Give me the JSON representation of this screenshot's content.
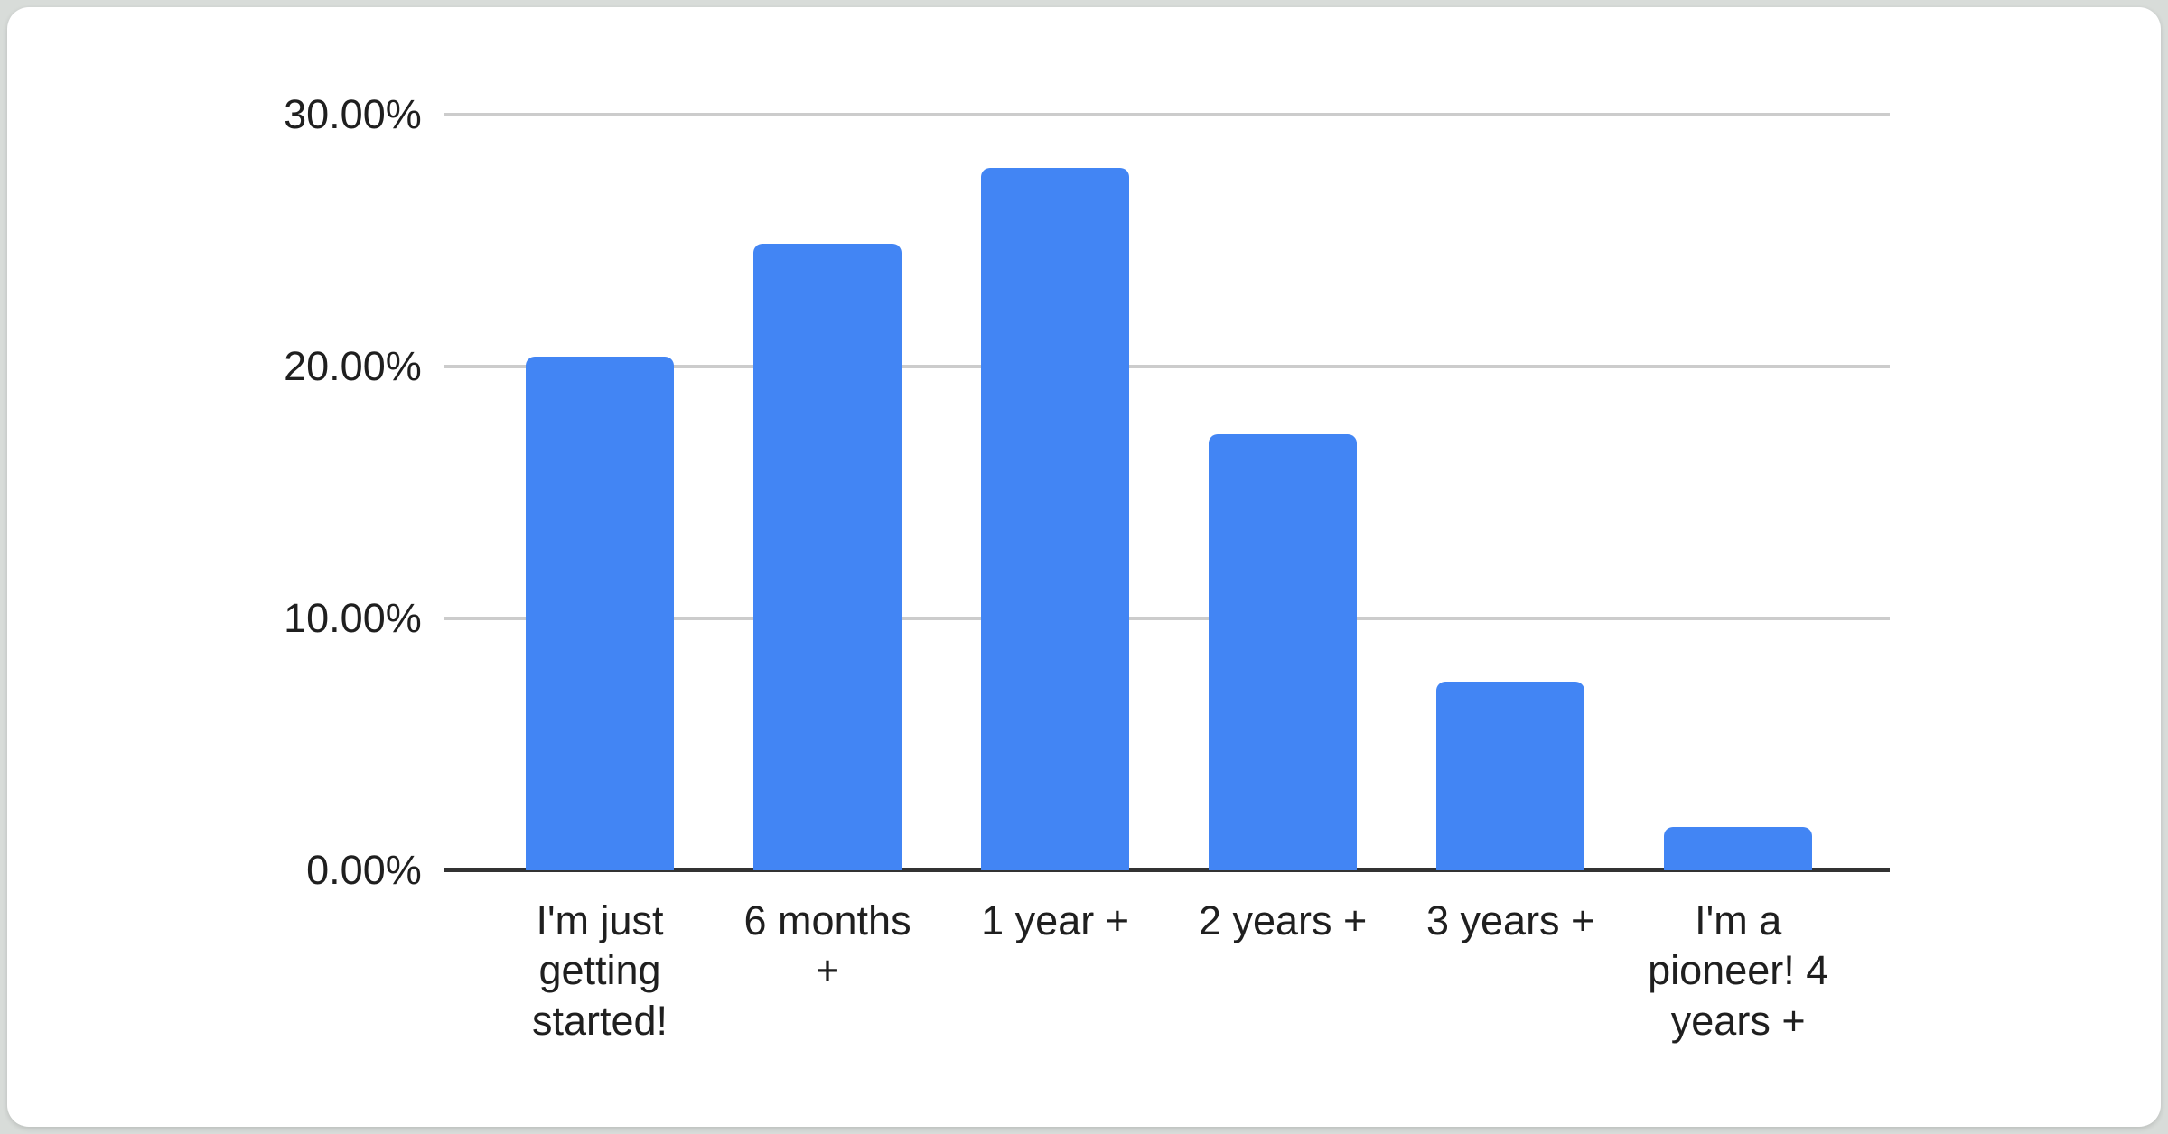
{
  "frame": {
    "background_color": "#d8dcd9",
    "card_background_color": "#ffffff"
  },
  "chart_data": {
    "type": "bar",
    "title": "",
    "categories": [
      "I'm just getting started!",
      "6 months +",
      "1 year +",
      "2 years +",
      "3 years +",
      "I'm a pioneer! 4 years +"
    ],
    "values": [
      20.4,
      24.9,
      27.9,
      17.3,
      7.5,
      1.7
    ],
    "value_unit": "%",
    "y_ticks": [
      "30.00%",
      "20.00%",
      "10.00%",
      "0.00%"
    ],
    "ylim": [
      0,
      30
    ],
    "xlabel": "",
    "ylabel": "",
    "grid": true,
    "legend_position": "none",
    "bar_color": "#4285f4",
    "gridline_color": "#cccccc",
    "axis_line_color": "#333333",
    "text_color": "#1f1f1f"
  }
}
